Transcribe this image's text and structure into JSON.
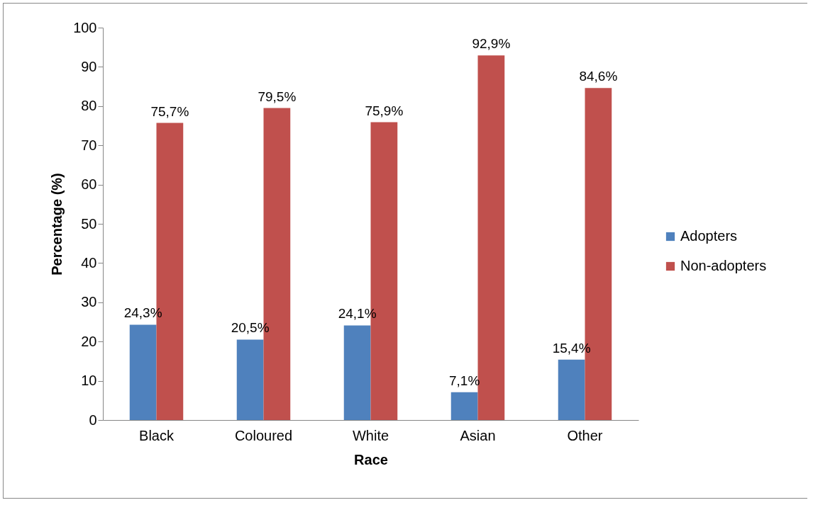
{
  "chart_data": {
    "type": "bar",
    "xlabel": "Race",
    "ylabel": "Percentage (%)",
    "categories": [
      "Black",
      "Coloured",
      "White",
      "Asian",
      "Other"
    ],
    "series": [
      {
        "name": "Adopters",
        "color": "#4f81bd",
        "values": [
          24.3,
          20.5,
          24.1,
          7.1,
          15.4
        ],
        "value_labels": [
          "24,3%",
          "20,5%",
          "24,1%",
          "7,1%",
          "15,4%"
        ]
      },
      {
        "name": "Non-adopters",
        "color": "#c0504d",
        "values": [
          75.7,
          79.5,
          75.9,
          92.9,
          84.6
        ],
        "value_labels": [
          "75,7%",
          "79,5%",
          "75,9%",
          "92,9%",
          "84,6%"
        ]
      }
    ],
    "ylim": [
      0,
      100
    ],
    "yticks": [
      0,
      10,
      20,
      30,
      40,
      50,
      60,
      70,
      80,
      90,
      100
    ],
    "grid": false,
    "legend": "right"
  }
}
